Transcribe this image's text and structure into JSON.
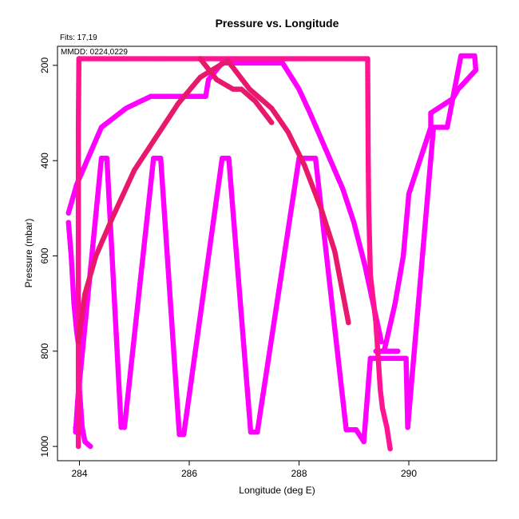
{
  "chart_data": {
    "type": "scatter",
    "title": "Pressure vs. Longitude",
    "xlabel": "Longitude (deg E)",
    "ylabel": "Pressure (mbar)",
    "annotations": {
      "fits": "Fits: 17,19",
      "mmdd": "MMDD: 0224,0229"
    },
    "xlim": [
      283.6,
      291.6
    ],
    "ylim": [
      1030,
      160
    ],
    "y_reversed": true,
    "grid": false,
    "x_ticks": [
      284,
      286,
      288,
      290
    ],
    "x_tick_labels": [
      "284",
      "286",
      "288",
      "290"
    ],
    "y_ticks": [
      200,
      400,
      600,
      800,
      1000
    ],
    "y_tick_labels": [
      "200",
      "400",
      "600",
      "800",
      "1000"
    ],
    "colors": {
      "magenta": "#ff00ff",
      "pink": "#ff1493",
      "crimson": "#e8196c"
    },
    "series": [
      {
        "color": "#ff00ff",
        "x": [
          283.93,
          283.93,
          283.97,
          284.4,
          284.5,
          284.76,
          284.82,
          285.35,
          285.48,
          285.82,
          285.9,
          286.6,
          286.72,
          287.12,
          287.24,
          288.0,
          288.3,
          288.86,
          289.04,
          289.18,
          289.3,
          289.95,
          289.98,
          290.45,
          290.7,
          290.95,
          291.2,
          291.22,
          290.9,
          290.8,
          290.4,
          290.4,
          290.0,
          289.9,
          289.75,
          289.55
        ],
        "y": [
          960,
          970,
          900,
          395,
          395,
          960,
          960,
          395,
          395,
          975,
          975,
          395,
          395,
          970,
          970,
          395,
          395,
          965,
          965,
          990,
          815,
          815,
          960,
          330,
          330,
          180,
          180,
          210,
          250,
          270,
          300,
          330,
          470,
          600,
          700,
          800
        ]
      },
      {
        "color": "#ff00ff",
        "x": [
          283.8,
          283.95,
          284.4,
          284.85,
          285.3,
          286.3,
          286.35,
          286.6,
          286.75,
          287.7,
          288.0,
          288.2,
          288.5,
          288.8,
          289.0,
          289.2,
          289.35,
          289.5
        ],
        "y": [
          510,
          450,
          330,
          290,
          265,
          265,
          230,
          195,
          195,
          195,
          250,
          300,
          380,
          460,
          530,
          620,
          700,
          780
        ]
      },
      {
        "color": "#ff00ff",
        "x": [
          283.8,
          283.85,
          283.9,
          283.95,
          284.0,
          284.0,
          284.05,
          284.1,
          284.2
        ],
        "y": [
          530,
          600,
          700,
          760,
          800,
          880,
          960,
          990,
          1000
        ]
      },
      {
        "color": "#ff00ff",
        "x": [
          289.4,
          289.5,
          289.6,
          289.7,
          289.8
        ],
        "y": [
          800,
          800,
          800,
          800,
          800
        ]
      },
      {
        "color": "#ff1493",
        "x": [
          283.98,
          283.98,
          283.99,
          284.0,
          289.25,
          289.26,
          289.27,
          289.3,
          289.4,
          289.48,
          289.52,
          289.6,
          289.66
        ],
        "y": [
          1000,
          330,
          186,
          186,
          186,
          390,
          500,
          640,
          740,
          880,
          920,
          960,
          1005
        ]
      },
      {
        "color": "#e8196c",
        "x": [
          283.98,
          284.1,
          284.3,
          284.6,
          285.0,
          285.4,
          285.8,
          286.2,
          286.7,
          287.1,
          287.5,
          287.8,
          288.1,
          288.4,
          288.65,
          288.8,
          288.9
        ],
        "y": [
          780,
          680,
          600,
          520,
          420,
          350,
          280,
          225,
          190,
          250,
          290,
          340,
          410,
          500,
          590,
          680,
          740
        ]
      },
      {
        "color": "#e8196c",
        "x": [
          286.2,
          286.5,
          286.8,
          286.95,
          287.2,
          287.5
        ],
        "y": [
          186,
          230,
          250,
          250,
          275,
          320
        ]
      }
    ]
  }
}
